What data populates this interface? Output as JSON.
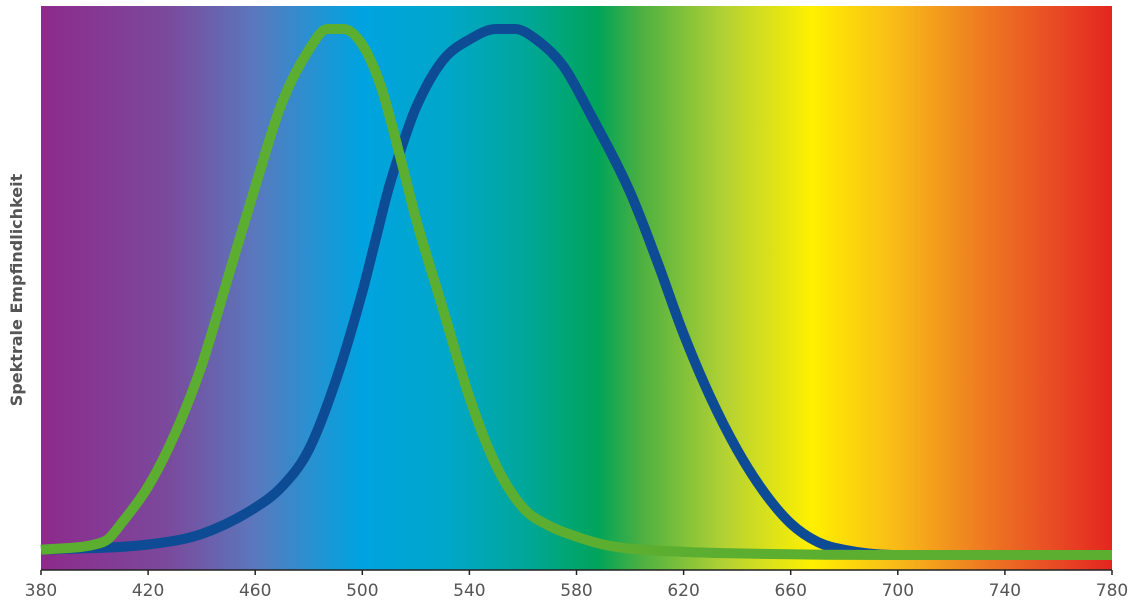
{
  "chart_data": {
    "type": "line",
    "title": "",
    "xlabel": "",
    "ylabel": "Spektrale Empfindlichkeit",
    "xlim": [
      380,
      780
    ],
    "ylim": [
      0,
      1
    ],
    "x_ticks": [
      380,
      420,
      460,
      500,
      540,
      580,
      620,
      660,
      700,
      740,
      780
    ],
    "tick_labels": [
      "380",
      "420",
      "460",
      "500",
      "540",
      "580",
      "620",
      "660",
      "700",
      "740",
      "780"
    ],
    "grid": false,
    "legend": "none",
    "background": "visible spectrum gradient",
    "series": [
      {
        "color": "#5bae2f",
        "x": [
          380,
          400,
          405,
          410,
          420,
          430,
          440,
          450,
          460,
          470,
          480,
          487,
          493,
          500,
          507,
          515,
          520,
          530,
          540,
          550,
          560,
          570,
          580,
          590,
          600,
          620,
          640,
          700,
          780
        ],
        "y": [
          0.01,
          0.02,
          0.03,
          0.06,
          0.13,
          0.23,
          0.36,
          0.53,
          0.7,
          0.86,
          0.96,
          1.0,
          1.0,
          0.97,
          0.89,
          0.74,
          0.64,
          0.47,
          0.3,
          0.17,
          0.09,
          0.055,
          0.035,
          0.02,
          0.012,
          0.006,
          0.003,
          0.0,
          0.0
        ]
      },
      {
        "color": "#0d4c94",
        "x": [
          380,
          420,
          440,
          460,
          470,
          480,
          490,
          500,
          505,
          510,
          515,
          520,
          530,
          540,
          550,
          557,
          565,
          575,
          585,
          600,
          610,
          620,
          630,
          640,
          650,
          660,
          670,
          680,
          700,
          780
        ],
        "y": [
          0.01,
          0.02,
          0.04,
          0.09,
          0.13,
          0.2,
          0.33,
          0.5,
          0.6,
          0.7,
          0.78,
          0.85,
          0.94,
          0.98,
          1.0,
          1.0,
          0.98,
          0.93,
          0.84,
          0.69,
          0.56,
          0.42,
          0.3,
          0.2,
          0.12,
          0.06,
          0.025,
          0.01,
          0.0,
          0.0
        ]
      }
    ]
  }
}
